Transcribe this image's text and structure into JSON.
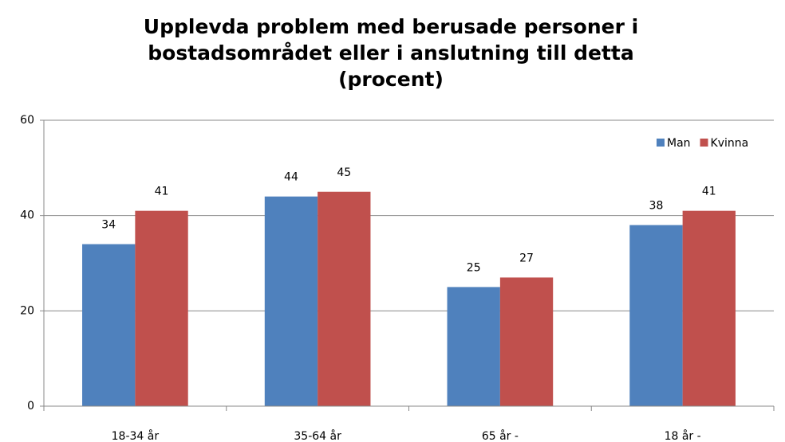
{
  "chart_data": {
    "type": "bar",
    "title": [
      "Upplevda problem med berusade personer i",
      "bostadsområdet eller i anslutning till detta",
      "(procent)"
    ],
    "categories": [
      "18-34 år",
      "35-64 år",
      "65 år -",
      "18 år -"
    ],
    "series": [
      {
        "name": "Man",
        "color": "#4f81bd",
        "values": [
          34,
          44,
          25,
          38
        ]
      },
      {
        "name": "Kvinna",
        "color": "#c0504d",
        "values": [
          41,
          45,
          27,
          41
        ]
      }
    ],
    "ylim": [
      0,
      60
    ],
    "yticks": [
      0,
      20,
      40,
      60
    ],
    "grid": true,
    "legend": "top-right"
  }
}
